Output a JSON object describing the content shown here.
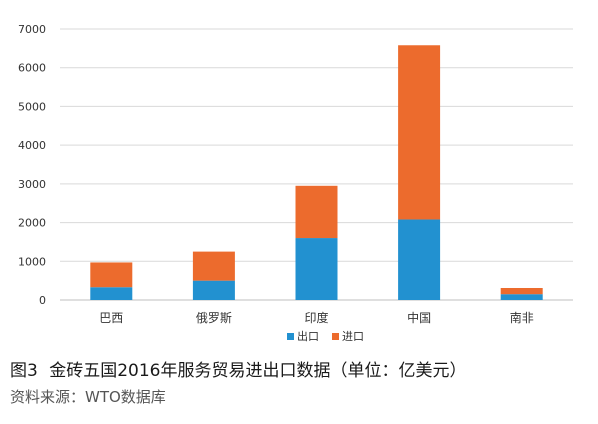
{
  "chart_data": {
    "type": "bar",
    "stacked": true,
    "categories": [
      "巴西",
      "俄罗斯",
      "印度",
      "中国",
      "南非"
    ],
    "series": [
      {
        "name": "出口",
        "values": [
          330,
          500,
          1600,
          2080,
          150
        ],
        "color": "#2291d0"
      },
      {
        "name": "进口",
        "values": [
          640,
          750,
          1350,
          4500,
          160
        ],
        "color": "#ec6b2d"
      }
    ],
    "ylim": [
      0,
      7000
    ],
    "yticks": [
      0,
      1000,
      2000,
      3000,
      4000,
      5000,
      6000,
      7000
    ],
    "grid": true,
    "legend_position": "bottom"
  },
  "caption": {
    "figure_label": "图3",
    "title": "金砖五国2016年服务贸易进出口数据（单位：亿美元）"
  },
  "source": "资料来源：WTO数据库"
}
